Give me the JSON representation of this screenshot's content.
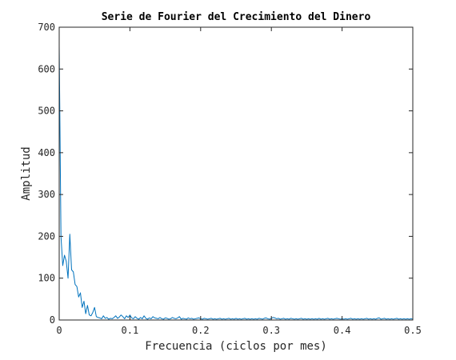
{
  "chart_data": {
    "type": "line",
    "title": "Serie de Fourier del Crecimiento del Dinero",
    "xlabel": "Frecuencia (ciclos por mes)",
    "ylabel": "Amplitud",
    "xlim": [
      0,
      0.5
    ],
    "ylim": [
      0,
      700
    ],
    "xticks": [
      0,
      0.1,
      0.2,
      0.3,
      0.4,
      0.5
    ],
    "xtick_labels": [
      "0",
      "0.1",
      "0.2",
      "0.3",
      "0.4",
      "0.5"
    ],
    "yticks": [
      0,
      100,
      200,
      300,
      400,
      500,
      600,
      700
    ],
    "ytick_labels": [
      "0",
      "100",
      "200",
      "300",
      "400",
      "500",
      "600",
      "700"
    ],
    "grid": false,
    "series": [
      {
        "color": "#0072BD",
        "x": [
          0,
          0.0025,
          0.005,
          0.0075,
          0.01,
          0.0125,
          0.015,
          0.0175,
          0.02,
          0.0225,
          0.025,
          0.0275,
          0.03,
          0.0325,
          0.035,
          0.0375,
          0.04,
          0.0425,
          0.045,
          0.0475,
          0.05,
          0.0525,
          0.055,
          0.0575,
          0.06,
          0.0625,
          0.065,
          0.0675,
          0.07,
          0.0725,
          0.075,
          0.0775,
          0.08,
          0.0825,
          0.085,
          0.0875,
          0.09,
          0.0925,
          0.095,
          0.0975,
          0.1,
          0.1025,
          0.105,
          0.1075,
          0.11,
          0.1125,
          0.115,
          0.1175,
          0.12,
          0.1225,
          0.125,
          0.1275,
          0.13,
          0.1325,
          0.135,
          0.1375,
          0.14,
          0.1425,
          0.145,
          0.1475,
          0.15,
          0.1525,
          0.155,
          0.1575,
          0.16,
          0.1625,
          0.165,
          0.1675,
          0.17,
          0.1725,
          0.175,
          0.1775,
          0.18,
          0.1825,
          0.185,
          0.1875,
          0.19,
          0.1925,
          0.195,
          0.1975,
          0.2,
          0.2025,
          0.205,
          0.2075,
          0.21,
          0.2125,
          0.215,
          0.2175,
          0.22,
          0.2225,
          0.225,
          0.2275,
          0.23,
          0.2325,
          0.235,
          0.2375,
          0.24,
          0.2425,
          0.245,
          0.2475,
          0.25,
          0.2525,
          0.255,
          0.2575,
          0.26,
          0.2625,
          0.265,
          0.2675,
          0.27,
          0.2725,
          0.275,
          0.2775,
          0.28,
          0.2825,
          0.285,
          0.2875,
          0.29,
          0.2925,
          0.295,
          0.2975,
          0.3,
          0.3025,
          0.305,
          0.3075,
          0.31,
          0.3125,
          0.315,
          0.3175,
          0.32,
          0.3225,
          0.325,
          0.3275,
          0.33,
          0.3325,
          0.335,
          0.3375,
          0.34,
          0.3425,
          0.345,
          0.3475,
          0.35,
          0.3525,
          0.355,
          0.3575,
          0.36,
          0.3625,
          0.365,
          0.3675,
          0.37,
          0.3725,
          0.375,
          0.3775,
          0.38,
          0.3825,
          0.385,
          0.3875,
          0.39,
          0.3925,
          0.395,
          0.3975,
          0.4,
          0.4025,
          0.405,
          0.4075,
          0.41,
          0.4125,
          0.415,
          0.4175,
          0.42,
          0.4225,
          0.425,
          0.4275,
          0.43,
          0.4325,
          0.435,
          0.4375,
          0.44,
          0.4425,
          0.445,
          0.4475,
          0.45,
          0.4525,
          0.455,
          0.4575,
          0.46,
          0.4625,
          0.465,
          0.4675,
          0.47,
          0.4725,
          0.475,
          0.4775,
          0.48,
          0.4825,
          0.485,
          0.4875,
          0.49,
          0.4925,
          0.495,
          0.4975,
          0.5
        ],
        "y": [
          655,
          200,
          130,
          155,
          140,
          100,
          205,
          120,
          115,
          85,
          80,
          55,
          65,
          30,
          45,
          15,
          35,
          12,
          10,
          18,
          30,
          8,
          6,
          5,
          3,
          10,
          4,
          6,
          2,
          4,
          3,
          6,
          10,
          4,
          7,
          12,
          8,
          3,
          10,
          6,
          12,
          5,
          3,
          8,
          4,
          2,
          6,
          3,
          10,
          4,
          2,
          5,
          3,
          8,
          5,
          4,
          3,
          6,
          3,
          2,
          5,
          4,
          2,
          3,
          6,
          4,
          3,
          5,
          8,
          2,
          4,
          3,
          2,
          5,
          3,
          4,
          2,
          3,
          4,
          5,
          3,
          2,
          4,
          3,
          2,
          3,
          4,
          2,
          3,
          2,
          3,
          4,
          2,
          3,
          2,
          3,
          4,
          2,
          3,
          2,
          4,
          2,
          3,
          2,
          3,
          4,
          2,
          3,
          2,
          3,
          2,
          3,
          2,
          4,
          3,
          2,
          4,
          5,
          3,
          2,
          4,
          6,
          5,
          3,
          4,
          2,
          3,
          4,
          2,
          3,
          2,
          4,
          3,
          2,
          3,
          2,
          3,
          4,
          2,
          3,
          2,
          3,
          2,
          3,
          2,
          3,
          2,
          4,
          2,
          3,
          2,
          3,
          4,
          2,
          3,
          2,
          3,
          4,
          3,
          2,
          3,
          2,
          3,
          2,
          3,
          4,
          2,
          3,
          2,
          3,
          2,
          3,
          2,
          3,
          4,
          2,
          3,
          2,
          3,
          2,
          4,
          5,
          2,
          3,
          4,
          2,
          3,
          2,
          3,
          2,
          3,
          4,
          2,
          3,
          2,
          3,
          2,
          3,
          2,
          3,
          2
        ]
      }
    ]
  }
}
